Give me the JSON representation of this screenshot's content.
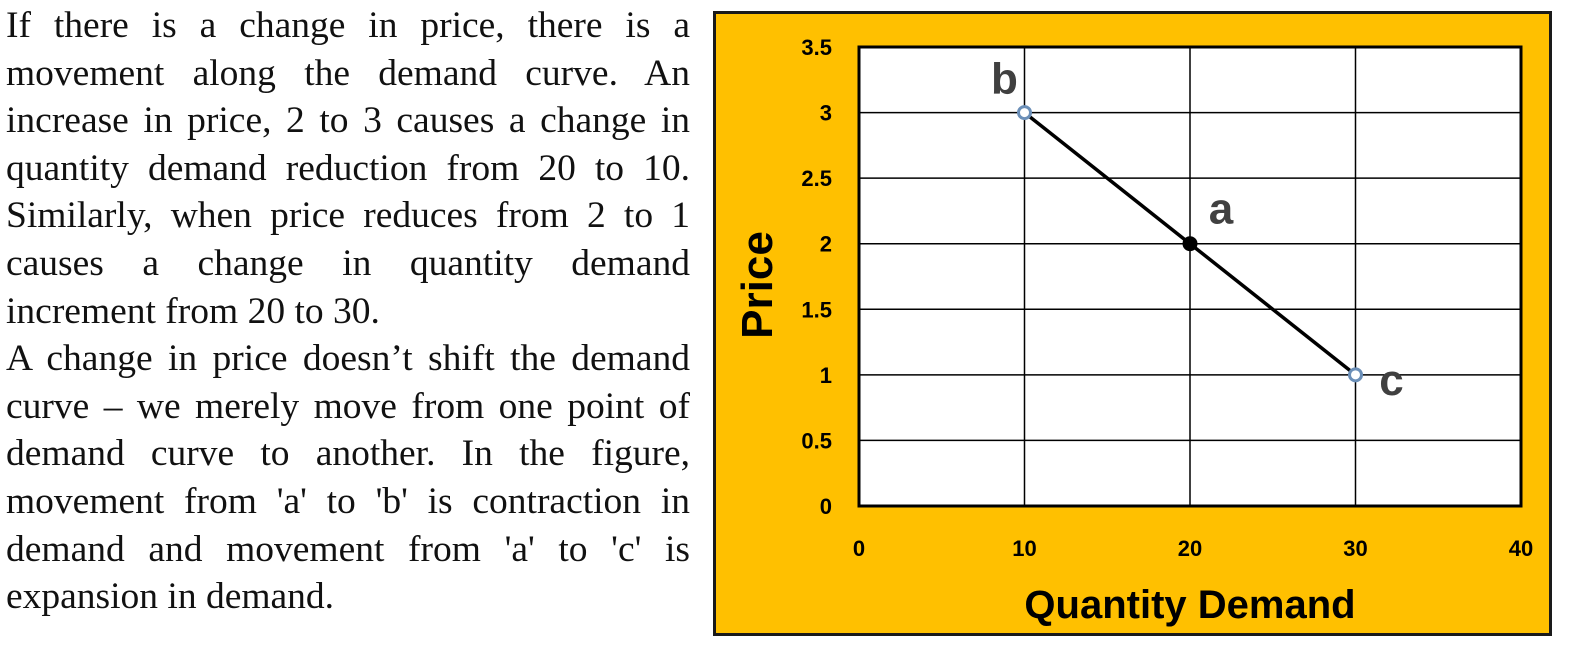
{
  "description": {
    "paragraphs": [
      "If there is a change in price, there is a movement along the demand curve. An increase in price, 2 to 3 causes a change in quantity demand reduction from 20 to 10. Similarly, when price reduces from 2 to 1 causes a change in quantity demand increment from 20 to 30.",
      "A change in price doesn’t shift the demand curve – we merely move from one point of demand curve to another. In the figure, movement from 'a' to 'b' is contraction in demand and movement from 'a' to 'c' is expansion in demand."
    ]
  },
  "chart_data": {
    "type": "line",
    "title": "",
    "xlabel": "Quantity Demand",
    "ylabel": "Price",
    "xlim": [
      0,
      40
    ],
    "ylim": [
      0,
      3.5
    ],
    "x_ticks": [
      "0",
      "10",
      "20",
      "30",
      "40"
    ],
    "y_ticks": [
      "0",
      "0.5",
      "1",
      "1.5",
      "2",
      "2.5",
      "3",
      "3.5"
    ],
    "grid": true,
    "legend": "none",
    "series": [
      {
        "x": [
          10,
          20,
          30
        ],
        "y": [
          3,
          2,
          1
        ]
      }
    ],
    "points": [
      {
        "label": "b",
        "x": 10,
        "y": 3,
        "marker_fill": "#ffffff"
      },
      {
        "label": "a",
        "x": 20,
        "y": 2,
        "marker_fill": "#000000"
      },
      {
        "label": "c",
        "x": 30,
        "y": 1,
        "marker_fill": "#ffffff"
      }
    ],
    "colors": {
      "panel_background": "#ffc000",
      "plot_background": "#ffffff",
      "line": "#000000",
      "marker_edge": "#6b8fb8",
      "point_label": "#404040"
    }
  }
}
